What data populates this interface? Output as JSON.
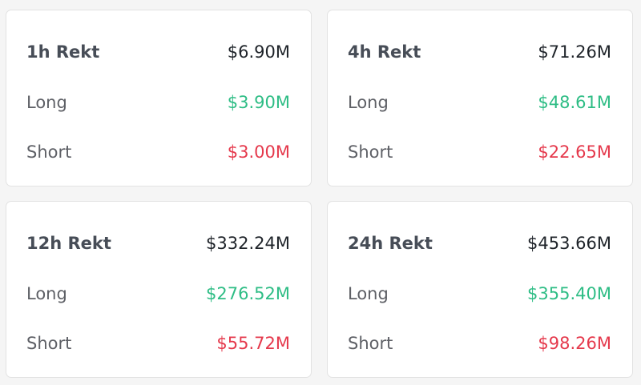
{
  "colors": {
    "long": "#2ebd85",
    "short": "#e5394c",
    "total": "#1e2329"
  },
  "cards": [
    {
      "title": "1h Rekt",
      "total": "$6.90M",
      "long_label": "Long",
      "long": "$3.90M",
      "short_label": "Short",
      "short": "$3.00M"
    },
    {
      "title": "4h Rekt",
      "total": "$71.26M",
      "long_label": "Long",
      "long": "$48.61M",
      "short_label": "Short",
      "short": "$22.65M"
    },
    {
      "title": "12h Rekt",
      "total": "$332.24M",
      "long_label": "Long",
      "long": "$276.52M",
      "short_label": "Short",
      "short": "$55.72M"
    },
    {
      "title": "24h Rekt",
      "total": "$453.66M",
      "long_label": "Long",
      "long": "$355.40M",
      "short_label": "Short",
      "short": "$98.26M"
    }
  ]
}
